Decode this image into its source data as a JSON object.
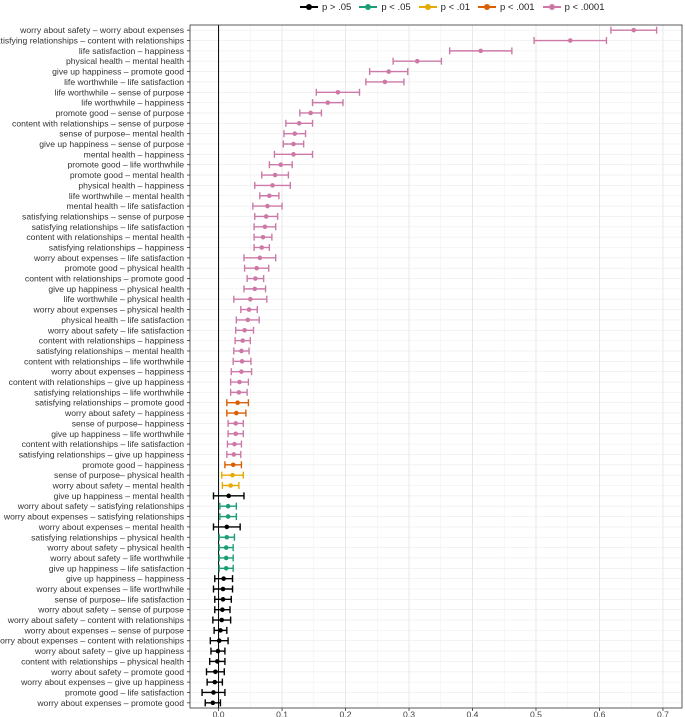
{
  "chart_data": {
    "type": "scatter",
    "title": "",
    "xlabel": "",
    "ylabel": "",
    "xlim": [
      -0.045,
      0.73
    ],
    "x_ticks": [
      0.0,
      0.1,
      0.2,
      0.3,
      0.4,
      0.5,
      0.6,
      0.7
    ],
    "x_tick_labels": [
      "0.0",
      "0.1",
      "0.2",
      "0.3",
      "0.4",
      "0.5",
      "0.6",
      "0.7"
    ],
    "grid": true,
    "reference_line_x": 0,
    "legend_position": "top",
    "legend": [
      {
        "key": "ns",
        "label": "p > .05",
        "color": "#000000"
      },
      {
        "key": "p05",
        "label": "p < .05",
        "color": "#1b9e77"
      },
      {
        "key": "p01",
        "label": "p < .01",
        "color": "#e6ab02"
      },
      {
        "key": "p001",
        "label": "p < .001",
        "color": "#d95f02"
      },
      {
        "key": "p0001",
        "label": "p < .0001",
        "color": "#cc79a7"
      }
    ],
    "rows": [
      {
        "label": "worry about safety – worry about expenses",
        "est": 0.654,
        "lo": 0.618,
        "hi": 0.69,
        "sig": "p0001"
      },
      {
        "label": "satisfying relationships – content with relationships",
        "est": 0.554,
        "lo": 0.497,
        "hi": 0.611,
        "sig": "p0001"
      },
      {
        "label": "life satisfaction – happiness",
        "est": 0.413,
        "lo": 0.364,
        "hi": 0.462,
        "sig": "p0001"
      },
      {
        "label": "physical health – mental health",
        "est": 0.313,
        "lo": 0.275,
        "hi": 0.351,
        "sig": "p0001"
      },
      {
        "label": "give up happiness – promote good",
        "est": 0.268,
        "lo": 0.238,
        "hi": 0.298,
        "sig": "p0001"
      },
      {
        "label": "life worthwhile – life satisfaction",
        "est": 0.262,
        "lo": 0.232,
        "hi": 0.292,
        "sig": "p0001"
      },
      {
        "label": "life worthwhile – sense of purpose",
        "est": 0.188,
        "lo": 0.154,
        "hi": 0.222,
        "sig": "p0001"
      },
      {
        "label": "life worthwhile – happiness",
        "est": 0.172,
        "lo": 0.148,
        "hi": 0.196,
        "sig": "p0001"
      },
      {
        "label": "promote good – sense of purpose",
        "est": 0.145,
        "lo": 0.128,
        "hi": 0.162,
        "sig": "p0001"
      },
      {
        "label": "content with relationships – sense of purpose",
        "est": 0.127,
        "lo": 0.106,
        "hi": 0.148,
        "sig": "p0001"
      },
      {
        "label": "sense of purpose– mental health",
        "est": 0.12,
        "lo": 0.103,
        "hi": 0.137,
        "sig": "p0001"
      },
      {
        "label": "give up happiness – sense of purpose",
        "est": 0.118,
        "lo": 0.102,
        "hi": 0.134,
        "sig": "p0001"
      },
      {
        "label": "mental health – happiness",
        "est": 0.118,
        "lo": 0.088,
        "hi": 0.148,
        "sig": "p0001"
      },
      {
        "label": "promote good – life worthwhile",
        "est": 0.098,
        "lo": 0.08,
        "hi": 0.116,
        "sig": "p0001"
      },
      {
        "label": "promote good – mental health",
        "est": 0.089,
        "lo": 0.068,
        "hi": 0.11,
        "sig": "p0001"
      },
      {
        "label": "physical health – happiness",
        "est": 0.085,
        "lo": 0.057,
        "hi": 0.113,
        "sig": "p0001"
      },
      {
        "label": "life worthwhile – mental health",
        "est": 0.08,
        "lo": 0.065,
        "hi": 0.095,
        "sig": "p0001"
      },
      {
        "label": "mental health – life satisfaction",
        "est": 0.077,
        "lo": 0.054,
        "hi": 0.1,
        "sig": "p0001"
      },
      {
        "label": "satisfying relationships – sense of purpose",
        "est": 0.075,
        "lo": 0.057,
        "hi": 0.093,
        "sig": "p0001"
      },
      {
        "label": "satisfying relationships – life satisfaction",
        "est": 0.073,
        "lo": 0.056,
        "hi": 0.09,
        "sig": "p0001"
      },
      {
        "label": "content with relationships – mental health",
        "est": 0.07,
        "lo": 0.056,
        "hi": 0.084,
        "sig": "p0001"
      },
      {
        "label": "satisfying relationships – happiness",
        "est": 0.068,
        "lo": 0.056,
        "hi": 0.08,
        "sig": "p0001"
      },
      {
        "label": "worry about expenses – life satisfaction",
        "est": 0.065,
        "lo": 0.04,
        "hi": 0.09,
        "sig": "p0001"
      },
      {
        "label": "promote good – physical health",
        "est": 0.06,
        "lo": 0.041,
        "hi": 0.079,
        "sig": "p0001"
      },
      {
        "label": "content with relationships – promote good",
        "est": 0.058,
        "lo": 0.045,
        "hi": 0.071,
        "sig": "p0001"
      },
      {
        "label": "give up happiness – physical health",
        "est": 0.057,
        "lo": 0.04,
        "hi": 0.074,
        "sig": "p0001"
      },
      {
        "label": "life worthwhile – physical health",
        "est": 0.05,
        "lo": 0.024,
        "hi": 0.076,
        "sig": "p0001"
      },
      {
        "label": "worry about expenses – physical health",
        "est": 0.048,
        "lo": 0.035,
        "hi": 0.061,
        "sig": "p0001"
      },
      {
        "label": "physical health – life satisfaction",
        "est": 0.046,
        "lo": 0.028,
        "hi": 0.064,
        "sig": "p0001"
      },
      {
        "label": "worry about safety – life satisfaction",
        "est": 0.041,
        "lo": 0.027,
        "hi": 0.055,
        "sig": "p0001"
      },
      {
        "label": "content with relationships – happiness",
        "est": 0.038,
        "lo": 0.026,
        "hi": 0.05,
        "sig": "p0001"
      },
      {
        "label": "satisfying relationships – mental health",
        "est": 0.036,
        "lo": 0.024,
        "hi": 0.048,
        "sig": "p0001"
      },
      {
        "label": "content with relationships – life worthwhile",
        "est": 0.037,
        "lo": 0.023,
        "hi": 0.051,
        "sig": "p0001"
      },
      {
        "label": "worry about expenses – happiness",
        "est": 0.036,
        "lo": 0.02,
        "hi": 0.052,
        "sig": "p0001"
      },
      {
        "label": "content with relationships – give up happiness",
        "est": 0.033,
        "lo": 0.019,
        "hi": 0.047,
        "sig": "p0001"
      },
      {
        "label": "satisfying relationships – life worthwhile",
        "est": 0.032,
        "lo": 0.019,
        "hi": 0.045,
        "sig": "p0001"
      },
      {
        "label": "satisfying relationships – promote good",
        "est": 0.03,
        "lo": 0.013,
        "hi": 0.047,
        "sig": "p001"
      },
      {
        "label": "worry about safety – happiness",
        "est": 0.028,
        "lo": 0.013,
        "hi": 0.043,
        "sig": "p001"
      },
      {
        "label": "sense of purpose– happiness",
        "est": 0.027,
        "lo": 0.015,
        "hi": 0.039,
        "sig": "p0001"
      },
      {
        "label": "give up happiness – life worthwhile",
        "est": 0.027,
        "lo": 0.015,
        "hi": 0.039,
        "sig": "p0001"
      },
      {
        "label": "content with relationships – life satisfaction",
        "est": 0.025,
        "lo": 0.014,
        "hi": 0.036,
        "sig": "p0001"
      },
      {
        "label": "satisfying relationships – give up happiness",
        "est": 0.024,
        "lo": 0.013,
        "hi": 0.035,
        "sig": "p0001"
      },
      {
        "label": "promote good – happiness",
        "est": 0.023,
        "lo": 0.01,
        "hi": 0.036,
        "sig": "p001"
      },
      {
        "label": "sense of purpose– physical health",
        "est": 0.022,
        "lo": 0.005,
        "hi": 0.039,
        "sig": "p01"
      },
      {
        "label": "worry about safety – mental health",
        "est": 0.019,
        "lo": 0.006,
        "hi": 0.032,
        "sig": "p01"
      },
      {
        "label": "give up happiness – mental health",
        "est": 0.016,
        "lo": -0.008,
        "hi": 0.04,
        "sig": "ns"
      },
      {
        "label": "worry about safety – satisfying relationships",
        "est": 0.015,
        "lo": 0.002,
        "hi": 0.028,
        "sig": "p05"
      },
      {
        "label": "worry about expenses – satisfying relationships",
        "est": 0.015,
        "lo": 0.002,
        "hi": 0.028,
        "sig": "p05"
      },
      {
        "label": "worry about expenses – mental health",
        "est": 0.013,
        "lo": -0.008,
        "hi": 0.034,
        "sig": "ns"
      },
      {
        "label": "satisfying relationships – physical health",
        "est": 0.013,
        "lo": 0.001,
        "hi": 0.025,
        "sig": "p05"
      },
      {
        "label": "worry about safety – physical health",
        "est": 0.012,
        "lo": 0.001,
        "hi": 0.023,
        "sig": "p05"
      },
      {
        "label": "worry about safety – life worthwhile",
        "est": 0.012,
        "lo": 0.001,
        "hi": 0.023,
        "sig": "p05"
      },
      {
        "label": "give up happiness – life satisfaction",
        "est": 0.012,
        "lo": 0.001,
        "hi": 0.023,
        "sig": "p05"
      },
      {
        "label": "give up happiness – happiness",
        "est": 0.008,
        "lo": -0.006,
        "hi": 0.022,
        "sig": "ns"
      },
      {
        "label": "worry about expenses – life worthwhile",
        "est": 0.007,
        "lo": -0.008,
        "hi": 0.022,
        "sig": "ns"
      },
      {
        "label": "sense of purpose– life satisfaction",
        "est": 0.007,
        "lo": -0.006,
        "hi": 0.02,
        "sig": "ns"
      },
      {
        "label": "worry about safety – sense of purpose",
        "est": 0.006,
        "lo": -0.006,
        "hi": 0.018,
        "sig": "ns"
      },
      {
        "label": "worry about safety – content with relationships",
        "est": 0.005,
        "lo": -0.009,
        "hi": 0.019,
        "sig": "ns"
      },
      {
        "label": "worry about expenses – sense of purpose",
        "est": 0.003,
        "lo": -0.007,
        "hi": 0.013,
        "sig": "ns"
      },
      {
        "label": "worry about expenses – content with relationships",
        "est": 0.001,
        "lo": -0.013,
        "hi": 0.015,
        "sig": "ns"
      },
      {
        "label": "worry about safety – give up happiness",
        "est": -0.001,
        "lo": -0.012,
        "hi": 0.01,
        "sig": "ns"
      },
      {
        "label": "content with relationships – physical health",
        "est": -0.002,
        "lo": -0.014,
        "hi": 0.01,
        "sig": "ns"
      },
      {
        "label": "worry about safety – promote good",
        "est": -0.005,
        "lo": -0.019,
        "hi": 0.009,
        "sig": "ns"
      },
      {
        "label": "worry about expenses – give up happiness",
        "est": -0.006,
        "lo": -0.018,
        "hi": 0.006,
        "sig": "ns"
      },
      {
        "label": "promote good – life satisfaction",
        "est": -0.008,
        "lo": -0.026,
        "hi": 0.01,
        "sig": "ns"
      },
      {
        "label": "worry about expenses – promote good",
        "est": -0.009,
        "lo": -0.021,
        "hi": 0.003,
        "sig": "ns"
      }
    ]
  }
}
